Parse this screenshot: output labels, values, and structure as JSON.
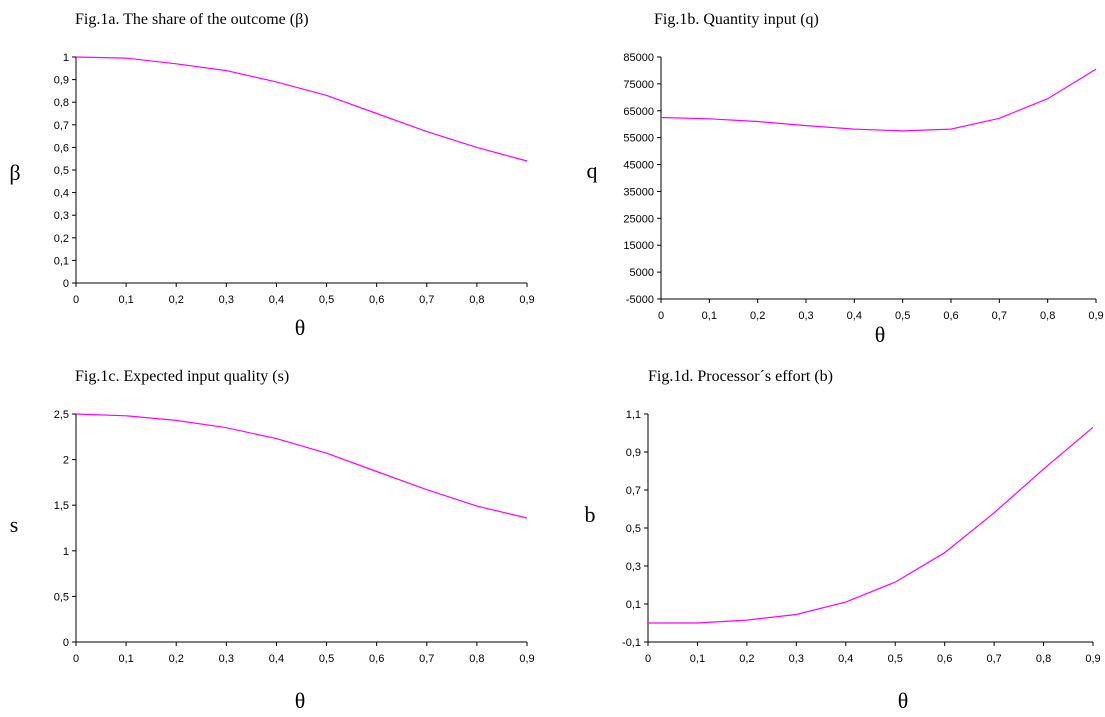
{
  "chart_data": [
    {
      "type": "line",
      "title": "Fig.1a. The share of the outcome (β)",
      "xlabel": "θ",
      "ylabel": "β",
      "xlim": [
        0,
        0.9
      ],
      "ylim": [
        0,
        1
      ],
      "x_ticks": [
        "0",
        "0,1",
        "0,2",
        "0,3",
        "0,4",
        "0,5",
        "0,6",
        "0,7",
        "0,8",
        "0,9"
      ],
      "y_ticks": [
        "0",
        "0,1",
        "0,2",
        "0,3",
        "0,4",
        "0,5",
        "0,6",
        "0,7",
        "0,8",
        "0,9",
        "1"
      ],
      "grid": false,
      "line_color": "#ff00ff",
      "series": [
        {
          "x": [
            0,
            0.1,
            0.2,
            0.3,
            0.4,
            0.5,
            0.6,
            0.7,
            0.8,
            0.9
          ],
          "y": [
            1.0,
            0.995,
            0.97,
            0.94,
            0.89,
            0.83,
            0.75,
            0.67,
            0.6,
            0.54
          ]
        }
      ]
    },
    {
      "type": "line",
      "title": "Fig.1b. Quantity input (q)",
      "xlabel": "θ",
      "ylabel": "q",
      "xlim": [
        0,
        0.9
      ],
      "ylim": [
        -5000,
        85000
      ],
      "x_ticks": [
        "0",
        "0,1",
        "0,2",
        "0,3",
        "0,4",
        "0,5",
        "0,6",
        "0,7",
        "0,8",
        "0,9"
      ],
      "y_ticks": [
        "-5000",
        "5000",
        "15000",
        "25000",
        "35000",
        "45000",
        "55000",
        "65000",
        "75000",
        "85000"
      ],
      "grid": false,
      "line_color": "#ff00ff",
      "series": [
        {
          "x": [
            0,
            0.1,
            0.2,
            0.3,
            0.4,
            0.5,
            0.6,
            0.7,
            0.8,
            0.9
          ],
          "y": [
            62500,
            62000,
            61000,
            59500,
            58200,
            57500,
            58200,
            62200,
            69500,
            80500
          ]
        }
      ]
    },
    {
      "type": "line",
      "title": "Fig.1c. Expected input quality (s)",
      "xlabel": "θ",
      "ylabel": "s",
      "xlim": [
        0,
        0.9
      ],
      "ylim": [
        0,
        2.5
      ],
      "x_ticks": [
        "0",
        "0,1",
        "0,2",
        "0,3",
        "0,4",
        "0,5",
        "0,6",
        "0,7",
        "0,8",
        "0,9"
      ],
      "y_ticks": [
        "0",
        "0,5",
        "1",
        "1,5",
        "2",
        "2,5"
      ],
      "grid": false,
      "line_color": "#ff00ff",
      "series": [
        {
          "x": [
            0,
            0.1,
            0.2,
            0.3,
            0.4,
            0.5,
            0.6,
            0.7,
            0.8,
            0.9
          ],
          "y": [
            2.5,
            2.48,
            2.43,
            2.35,
            2.23,
            2.07,
            1.87,
            1.67,
            1.49,
            1.36
          ]
        }
      ]
    },
    {
      "type": "line",
      "title": "Fig.1d. Processor´s effort  (b)",
      "xlabel": "θ",
      "ylabel": "b",
      "xlim": [
        0,
        0.9
      ],
      "ylim": [
        -0.1,
        1.1
      ],
      "x_ticks": [
        "0",
        "0,1",
        "0,2",
        "0,3",
        "0,4",
        "0,5",
        "0,6",
        "0,7",
        "0,8",
        "0,9"
      ],
      "y_ticks": [
        "-0,1",
        "0,1",
        "0,3",
        "0,5",
        "0,7",
        "0,9",
        "1,1"
      ],
      "grid": false,
      "line_color": "#ff00ff",
      "series": [
        {
          "x": [
            0,
            0.1,
            0.2,
            0.3,
            0.4,
            0.5,
            0.6,
            0.7,
            0.8,
            0.9
          ],
          "y": [
            0.0,
            0.0,
            0.015,
            0.045,
            0.11,
            0.215,
            0.37,
            0.58,
            0.81,
            1.03
          ]
        }
      ]
    }
  ]
}
